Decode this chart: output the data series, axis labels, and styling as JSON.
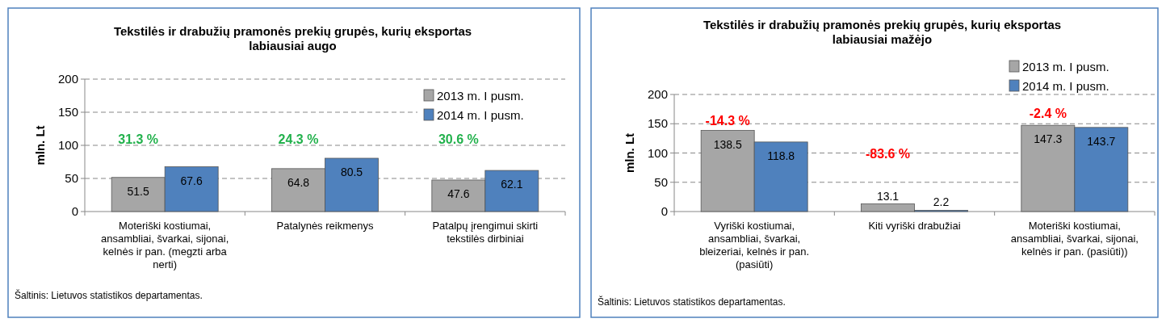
{
  "chart_data": [
    {
      "type": "bar",
      "title": "Tekstilės ir drabužių pramonės prekių grupės, kurių eksportas\nlabiausiai augo",
      "ylabel": "mln. Lt",
      "categories": [
        "Moteriški kostiumai,\nansambliai, švarkai, sijonai,\nkelnės ir pan. (megzti arba\nnerti)",
        "Patalynės reikmenys",
        "Patalpų įrengimui skirti\ntekstilės dirbiniai"
      ],
      "series": [
        {
          "name": "2013 m. I pusm.",
          "color": "#a6a6a6",
          "values": [
            51.5,
            64.8,
            47.6
          ]
        },
        {
          "name": "2014 m. I pusm.",
          "color": "#4f81bd",
          "values": [
            67.6,
            80.5,
            62.1
          ]
        }
      ],
      "ylim": [
        0,
        200
      ],
      "yticks": [
        0,
        50,
        100,
        150,
        200
      ],
      "grid": "y",
      "legend": "top right",
      "data_labels": true,
      "annotations": [
        "31.3 %",
        "24.3 %",
        "30.6 %",
        "Šaltinis: Lietuvos statistikos departamentas."
      ]
    },
    {
      "type": "bar",
      "title": "Tekstilės ir drabužių pramonės prekių grupės, kurių eksportas\nlabiausiai mažėjo",
      "ylabel": "mln. Lt",
      "categories": [
        "Vyriški kostiumai,\nansambliai, švarkai,\nbleizeriai, kelnės ir pan.\n(pasiūti)",
        "Kiti vyriški drabužiai",
        "Moteriški kostiumai,\nansambliai, švarkai, sijonai,\nkelnės ir pan. (pasiūti))"
      ],
      "series": [
        {
          "name": "2013 m. I pusm.",
          "color": "#a6a6a6",
          "values": [
            138.5,
            13.1,
            147.3
          ]
        },
        {
          "name": "2014 m. I pusm.",
          "color": "#4f81bd",
          "values": [
            118.8,
            2.2,
            143.7
          ]
        }
      ],
      "ylim": [
        0,
        200
      ],
      "yticks": [
        0,
        50,
        100,
        150,
        200
      ],
      "grid": "y",
      "legend": "top right",
      "data_labels": true,
      "annotations": [
        "-14.3 %",
        "-83.6 %",
        "-2.4 %",
        "Šaltinis: Lietuvos statistikos departamentas."
      ]
    }
  ]
}
